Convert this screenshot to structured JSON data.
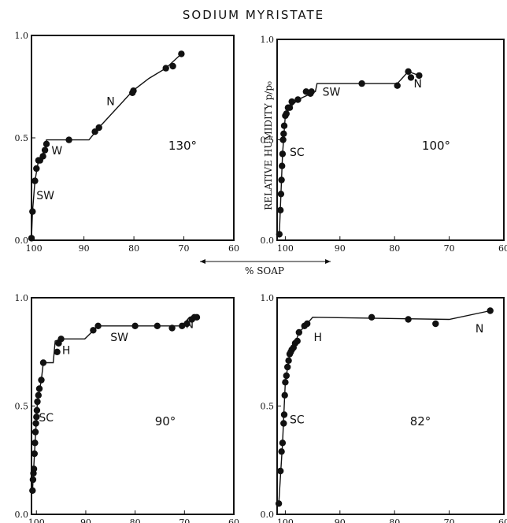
{
  "figure_title": "SODIUM   MYRISTATE",
  "shared_labels": {
    "ylabel": "RELATIVE HUMIDITY p/p₀",
    "xlabel": "% SOAP"
  },
  "chart_data": [
    {
      "type": "scatter",
      "panel": "130",
      "temperature_label": "130°",
      "xlim": [
        100.5,
        60
      ],
      "ylim": [
        0,
        1
      ],
      "xticks": [
        "100",
        "90",
        "80",
        "70",
        "60"
      ],
      "yticks": [
        "0.0",
        "0.5",
        "1.0"
      ],
      "points": {
        "x": [
          100.5,
          100.3,
          99.8,
          99.5,
          99.1,
          98.8,
          98.2,
          97.8,
          97.5,
          93,
          87.8,
          87,
          80.3,
          80.1,
          73.6,
          72.2,
          70.5
        ],
        "y": [
          0.01,
          0.14,
          0.29,
          0.35,
          0.39,
          0.39,
          0.41,
          0.44,
          0.47,
          0.49,
          0.53,
          0.55,
          0.72,
          0.73,
          0.84,
          0.85,
          0.91
        ]
      },
      "line": {
        "x": [
          100.5,
          100.3,
          99.8,
          99.1,
          97.8,
          97.5,
          89,
          87,
          80.2,
          77,
          73.6,
          70.5
        ],
        "y": [
          0.01,
          0.14,
          0.29,
          0.39,
          0.44,
          0.49,
          0.49,
          0.55,
          0.73,
          0.79,
          0.84,
          0.91
        ]
      },
      "annotations": [
        {
          "text": "SW",
          "x": 99.5,
          "y": 0.2
        },
        {
          "text": "W",
          "x": 96.5,
          "y": 0.42
        },
        {
          "text": "N",
          "x": 85.5,
          "y": 0.66
        }
      ]
    },
    {
      "type": "scatter",
      "panel": "100",
      "temperature_label": "100°",
      "xlim": [
        101.5,
        60
      ],
      "ylim": [
        0,
        1
      ],
      "xticks": [
        "100",
        "90",
        "80",
        "70",
        "60"
      ],
      "yticks": [
        "0.0",
        "0.5",
        "1.0"
      ],
      "points": {
        "x": [
          101.1,
          100.9,
          100.8,
          100.7,
          100.6,
          100.5,
          100.4,
          100.3,
          100.2,
          100,
          99.8,
          99.5,
          99.2,
          98.8,
          97.7,
          96.2,
          95.4,
          95.2,
          86,
          79.5,
          77.5,
          77,
          75.5
        ],
        "y": [
          0.03,
          0.15,
          0.23,
          0.3,
          0.37,
          0.43,
          0.5,
          0.53,
          0.57,
          0.62,
          0.63,
          0.66,
          0.66,
          0.69,
          0.7,
          0.74,
          0.73,
          0.74,
          0.78,
          0.77,
          0.84,
          0.81,
          0.82
        ]
      },
      "line": {
        "x": [
          101.1,
          100.5,
          100,
          99.2,
          97.7,
          94.5,
          94.2,
          79.5,
          77.5,
          75.5
        ],
        "y": [
          0.03,
          0.43,
          0.62,
          0.66,
          0.7,
          0.74,
          0.78,
          0.78,
          0.84,
          0.82
        ]
      },
      "annotations": [
        {
          "text": "SC",
          "x": 99.2,
          "y": 0.42
        },
        {
          "text": "SW",
          "x": 93.2,
          "y": 0.72
        },
        {
          "text": "N",
          "x": 76.5,
          "y": 0.76
        }
      ]
    },
    {
      "type": "scatter",
      "panel": "90",
      "temperature_label": "90°",
      "xlim": [
        101,
        60
      ],
      "ylim": [
        0,
        1
      ],
      "xticks": [
        "100",
        "90",
        "80",
        "70",
        "60"
      ],
      "yticks": [
        "0.0",
        "0.5",
        "1.0"
      ],
      "points": {
        "x": [
          100.8,
          100.7,
          100.6,
          100.5,
          100.4,
          100.3,
          100.2,
          100.1,
          100,
          99.9,
          99.8,
          99.6,
          99.4,
          99,
          98.6,
          95.8,
          95.5,
          95,
          88.5,
          87.5,
          80,
          75.5,
          72.5,
          70.5,
          69.5,
          68.5,
          68,
          67.5
        ],
        "y": [
          0.11,
          0.16,
          0.19,
          0.21,
          0.28,
          0.33,
          0.38,
          0.42,
          0.45,
          0.48,
          0.52,
          0.55,
          0.58,
          0.62,
          0.7,
          0.75,
          0.79,
          0.81,
          0.85,
          0.87,
          0.87,
          0.87,
          0.86,
          0.87,
          0.88,
          0.9,
          0.91,
          0.91
        ]
      },
      "line": {
        "x": [
          100.8,
          100.4,
          99.8,
          99,
          98.6,
          96.6,
          96.2,
          95,
          90.2,
          87.5,
          70.5,
          69,
          67.5
        ],
        "y": [
          0.11,
          0.28,
          0.52,
          0.62,
          0.7,
          0.7,
          0.8,
          0.81,
          0.81,
          0.87,
          0.87,
          0.91,
          0.91
        ]
      },
      "annotations": [
        {
          "text": "SC",
          "x": 99.5,
          "y": 0.43
        },
        {
          "text": "H",
          "x": 94.8,
          "y": 0.74
        },
        {
          "text": "SW",
          "x": 85,
          "y": 0.8
        },
        {
          "text": "N",
          "x": 69.8,
          "y": 0.86
        }
      ]
    },
    {
      "type": "scatter",
      "panel": "82",
      "temperature_label": "82°",
      "xlim": [
        101.5,
        60
      ],
      "ylim": [
        0,
        1
      ],
      "xticks": [
        "100",
        "90",
        "80",
        "70",
        "60"
      ],
      "yticks": [
        "0.0",
        "0.5",
        "1.0"
      ],
      "points": {
        "x": [
          101.2,
          100.9,
          100.7,
          100.5,
          100.3,
          100.2,
          100.1,
          100,
          99.8,
          99.6,
          99.4,
          99.2,
          99,
          98.8,
          98.5,
          98.2,
          97.8,
          97.5,
          96.5,
          96,
          84.2,
          77.5,
          72.5,
          62.5
        ],
        "y": [
          0.05,
          0.2,
          0.29,
          0.33,
          0.42,
          0.46,
          0.55,
          0.61,
          0.64,
          0.68,
          0.71,
          0.74,
          0.75,
          0.76,
          0.77,
          0.79,
          0.8,
          0.84,
          0.87,
          0.88,
          0.91,
          0.9,
          0.88,
          0.94
        ]
      },
      "line": {
        "x": [
          101.2,
          100.5,
          100,
          99.2,
          98.2,
          97.5,
          96,
          95,
          70,
          62.5
        ],
        "y": [
          0.05,
          0.33,
          0.61,
          0.74,
          0.79,
          0.84,
          0.88,
          0.91,
          0.9,
          0.94
        ]
      },
      "annotations": [
        {
          "text": "SC",
          "x": 99.2,
          "y": 0.42
        },
        {
          "text": "H",
          "x": 94.8,
          "y": 0.8
        },
        {
          "text": "N",
          "x": 65.2,
          "y": 0.84
        }
      ]
    }
  ]
}
